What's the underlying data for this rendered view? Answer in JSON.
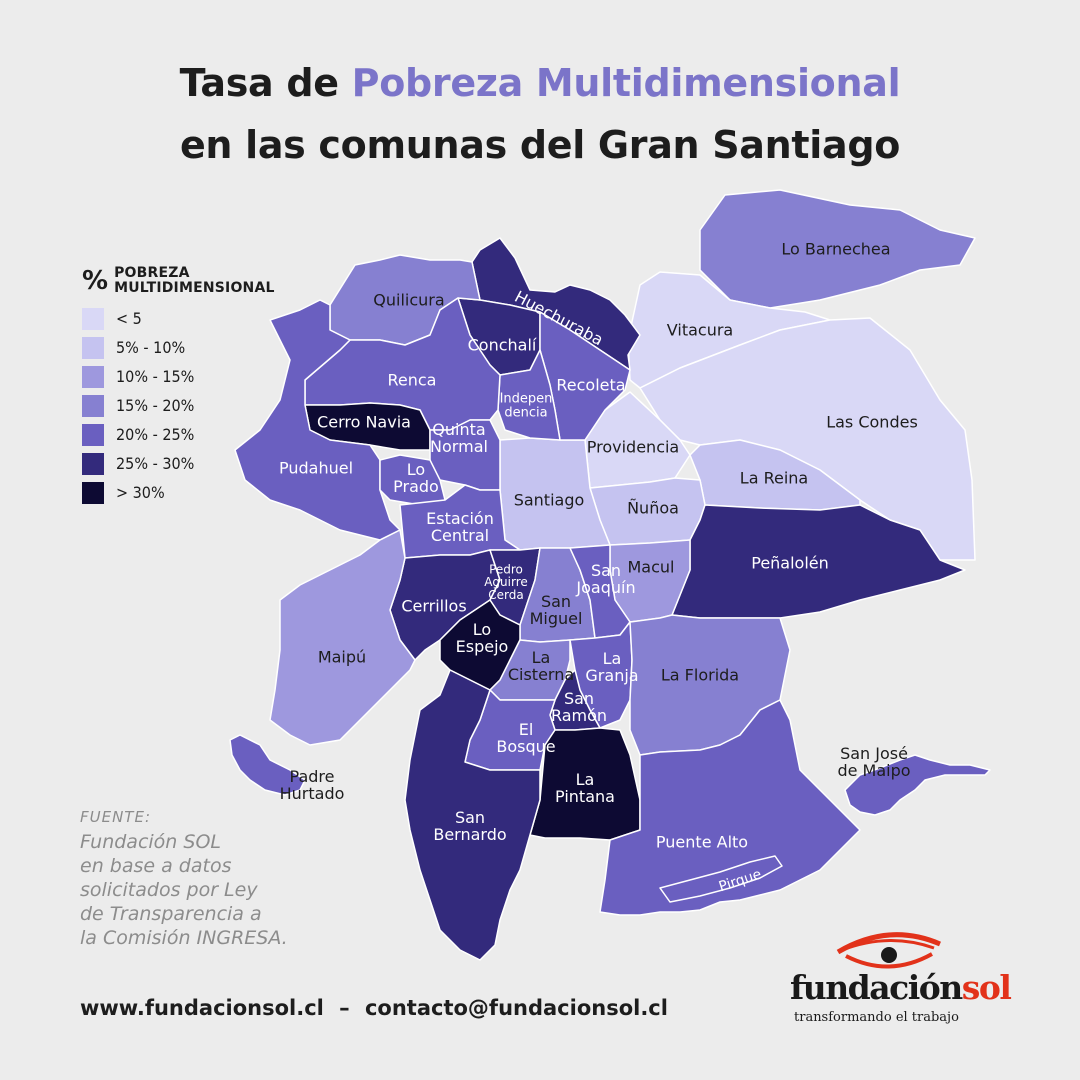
{
  "title": {
    "line1_prefix": "Tasa de",
    "line1_accent": "Pobreza Multidimensional",
    "line2": "en las comunas del Gran Santiago"
  },
  "colors": {
    "title_accent": "#7b74c9",
    "scale": [
      "#d9d8f6",
      "#c5c3f0",
      "#9e98de",
      "#8680d1",
      "#6a5fc0",
      "#332a7c",
      "#0d0a33"
    ],
    "background": "#ececec",
    "logo_red": "#e2321a"
  },
  "legend": {
    "symbol": "%",
    "title_line1": "POBREZA",
    "title_line2": "MULTIDIMENSIONAL",
    "classes": [
      {
        "label": "< 5",
        "color": "#d9d8f6"
      },
      {
        "label": "5% - 10%",
        "color": "#c5c3f0"
      },
      {
        "label": "10% - 15%",
        "color": "#9e98de"
      },
      {
        "label": "15% - 20%",
        "color": "#8680d1"
      },
      {
        "label": "20% - 25%",
        "color": "#6a5fc0"
      },
      {
        "label": "25% - 30%",
        "color": "#332a7c"
      },
      {
        "label": "> 30%",
        "color": "#0d0a33"
      }
    ]
  },
  "comunas": [
    {
      "name": "Lo Barnechea",
      "lines": [
        "Lo Barnechea"
      ],
      "class": 3
    },
    {
      "name": "Vitacura",
      "lines": [
        "Vitacura"
      ],
      "class": 0
    },
    {
      "name": "Las Condes",
      "lines": [
        "Las Condes"
      ],
      "class": 0
    },
    {
      "name": "Providencia",
      "lines": [
        "Providencia"
      ],
      "class": 0
    },
    {
      "name": "La Reina",
      "lines": [
        "La Reina"
      ],
      "class": 1
    },
    {
      "name": "Ñuñoa",
      "lines": [
        "Ñuñoa"
      ],
      "class": 1
    },
    {
      "name": "Peñalolén",
      "lines": [
        "Peñalolén"
      ],
      "class": 5
    },
    {
      "name": "Macul",
      "lines": [
        "Macul"
      ],
      "class": 2
    },
    {
      "name": "Santiago",
      "lines": [
        "Santiago"
      ],
      "class": 1
    },
    {
      "name": "Huechuraba",
      "lines": [
        "Huechuraba"
      ],
      "class": 5
    },
    {
      "name": "Conchalí",
      "lines": [
        "Conchalí"
      ],
      "class": 5
    },
    {
      "name": "Recoleta",
      "lines": [
        "Recoleta"
      ],
      "class": 4
    },
    {
      "name": "Independencia",
      "lines": [
        "Indepen",
        "dencia"
      ],
      "class": 4
    },
    {
      "name": "Quilicura",
      "lines": [
        "Quilicura"
      ],
      "class": 3
    },
    {
      "name": "Renca",
      "lines": [
        "Renca"
      ],
      "class": 4
    },
    {
      "name": "Cerro Navia",
      "lines": [
        "Cerro Navia"
      ],
      "class": 6
    },
    {
      "name": "Quinta Normal",
      "lines": [
        "Quinta",
        "Normal"
      ],
      "class": 4
    },
    {
      "name": "Pudahuel",
      "lines": [
        "Pudahuel"
      ],
      "class": 4
    },
    {
      "name": "Lo Prado",
      "lines": [
        "Lo",
        "Prado"
      ],
      "class": 4
    },
    {
      "name": "Estación Central",
      "lines": [
        "Estación",
        "Central"
      ],
      "class": 4
    },
    {
      "name": "Cerrillos",
      "lines": [
        "Cerrillos"
      ],
      "class": 5
    },
    {
      "name": "Pedro Aguirre Cerda",
      "lines": [
        "Pedro",
        "Aguirre",
        "Cerda"
      ],
      "class": 5
    },
    {
      "name": "San Miguel",
      "lines": [
        "San",
        "Miguel"
      ],
      "class": 3
    },
    {
      "name": "San Joaquín",
      "lines": [
        "San",
        "Joaquín"
      ],
      "class": 4
    },
    {
      "name": "Maipú",
      "lines": [
        "Maipú"
      ],
      "class": 2
    },
    {
      "name": "Lo Espejo",
      "lines": [
        "Lo",
        "Espejo"
      ],
      "class": 6
    },
    {
      "name": "La Cisterna",
      "lines": [
        "La",
        "Cisterna"
      ],
      "class": 3
    },
    {
      "name": "La Granja",
      "lines": [
        "La",
        "Granja"
      ],
      "class": 4
    },
    {
      "name": "San Ramón",
      "lines": [
        "San",
        "Ramón"
      ],
      "class": 5
    },
    {
      "name": "La Florida",
      "lines": [
        "La Florida"
      ],
      "class": 3
    },
    {
      "name": "El Bosque",
      "lines": [
        "El",
        "Bosque"
      ],
      "class": 4
    },
    {
      "name": "La Pintana",
      "lines": [
        "La",
        "Pintana"
      ],
      "class": 6
    },
    {
      "name": "San Bernardo",
      "lines": [
        "San",
        "Bernardo"
      ],
      "class": 5
    },
    {
      "name": "Puente Alto",
      "lines": [
        "Puente Alto"
      ],
      "class": 4
    },
    {
      "name": "Pirque",
      "lines": [
        "Pirque"
      ],
      "class": 4
    },
    {
      "name": "Padre Hurtado",
      "lines": [
        "Padre",
        "Hurtado"
      ],
      "class": 4
    },
    {
      "name": "San José de Maipo",
      "lines": [
        "San José",
        "de Maipo"
      ],
      "class": 4
    }
  ],
  "source": {
    "label": "FUENTE:",
    "text": "Fundación SOL\nen base a datos\nsolicitados por Ley\nde Transparencia a\nla Comisión INGRESA."
  },
  "footer": {
    "website": "www.fundacionsol.cl",
    "separator": "–",
    "email": "contacto@fundacionsol.cl"
  },
  "logo": {
    "name_main": "fundación",
    "name_accent": "sol",
    "tagline": "transformando el trabajo"
  }
}
